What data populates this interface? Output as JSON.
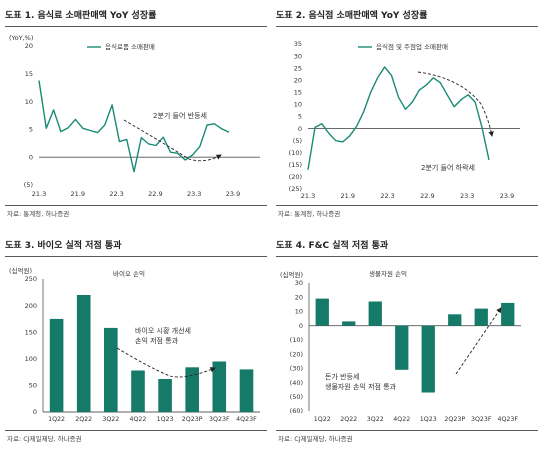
{
  "colors": {
    "teal": "#1a8a76",
    "bar": "#157a68",
    "axis": "#555555"
  },
  "panels": [
    {
      "title": "도표 1. 음식료 소매판매액 YoY 성장률",
      "source": "자료: 통계청, 하나증권",
      "annotation": "2분기 들어 반등세",
      "chart_data": {
        "type": "line",
        "ylabel": "(YoY,%)",
        "ylim": [
          -5,
          20
        ],
        "yticks": [
          "20",
          "15",
          "10",
          "5",
          "0",
          "(5)"
        ],
        "xticks": [
          "21.3",
          "21.9",
          "22.3",
          "22.9",
          "23.3",
          "23.9"
        ],
        "series": [
          {
            "name": "음식료품 소매판매",
            "values": [
              13.8,
              5.2,
              8.5,
              4.6,
              5.3,
              6.8,
              5.2,
              4.8,
              4.4,
              5.8,
              9.4,
              2.8,
              3.2,
              -2.6,
              3.5,
              2.4,
              2.1,
              3.6,
              0.9,
              0.7,
              -0.5,
              0.4,
              1.9,
              5.8,
              6.0,
              5.1,
              4.5
            ]
          }
        ]
      }
    },
    {
      "title": "도표 2. 음식점 소매판매액 YoY 성장률",
      "source": "자료: 통계청, 하나증권",
      "annotation": "2분기 들어 하락세",
      "chart_data": {
        "type": "line",
        "ylabel": "",
        "ylim": [
          -25,
          35
        ],
        "yticks": [
          "35",
          "30",
          "25",
          "20",
          "15",
          "10",
          "5",
          "0",
          "(5)",
          "(10)",
          "(15)",
          "(20)",
          "(25)"
        ],
        "xticks": [
          "21.3",
          "21.9",
          "22.3",
          "22.9",
          "23.3",
          "23.9"
        ],
        "series": [
          {
            "name": "음식점 및 주점업 소매판매",
            "values": [
              -17,
              0.5,
              2,
              -2,
              -5,
              -5.5,
              -3,
              1,
              7,
              15,
              21,
              25.5,
              22,
              13,
              8,
              11,
              16,
              18,
              21,
              19,
              14,
              9,
              12,
              14,
              11,
              0.5,
              -13
            ]
          }
        ]
      }
    },
    {
      "title": "도표 3. 바이오 실적 저점 통과",
      "source": "자료: CJ제일제당, 하나증권",
      "annotation": [
        "바이오 시황 개선세",
        "손익 저점 통과"
      ],
      "chart_data": {
        "type": "bar",
        "ylabel": "(십억원)",
        "ylim": [
          0,
          250
        ],
        "yticks": [
          "250",
          "200",
          "150",
          "100",
          "50",
          "0"
        ],
        "categories": [
          "1Q22",
          "2Q22",
          "3Q22",
          "4Q22",
          "1Q23",
          "2Q23P",
          "3Q23F",
          "4Q23F"
        ],
        "series": [
          {
            "name": "바이오 손익",
            "values": [
              175,
              220,
              158,
              78,
              62,
              84,
              95,
              80
            ]
          }
        ]
      }
    },
    {
      "title": "도표 4. F&C 실적 저점 통과",
      "source": "자료: CJ제일제당, 하나증권",
      "annotation": [
        "돈가 반등세",
        "생물자원 손익 저점 통과"
      ],
      "chart_data": {
        "type": "bar",
        "ylabel": "(십억원)",
        "ylim": [
          -60,
          30
        ],
        "yticks": [
          "30",
          "20",
          "10",
          "0",
          "(10)",
          "(20)",
          "(30)",
          "(40)",
          "(50)",
          "(60)"
        ],
        "categories": [
          "1Q22",
          "2Q22",
          "3Q22",
          "4Q22",
          "1Q23",
          "2Q23P",
          "3Q23F",
          "4Q23F"
        ],
        "series": [
          {
            "name": "생물자원 손익",
            "values": [
              19,
              3,
              17,
              -31,
              -47,
              8,
              12,
              16
            ]
          }
        ]
      }
    }
  ]
}
